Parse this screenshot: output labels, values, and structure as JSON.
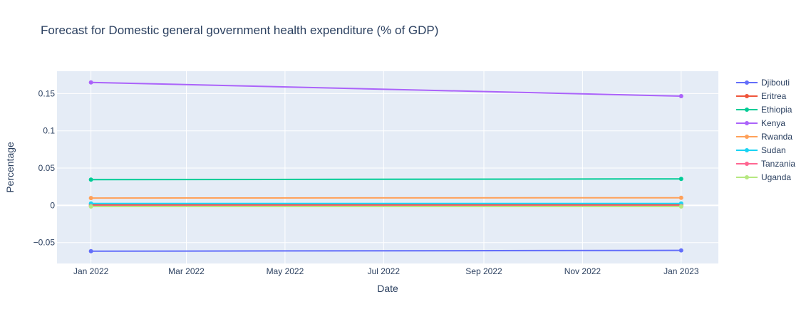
{
  "chart_data": {
    "type": "line",
    "title": "Forecast for Domestic general government health expenditure (% of GDP)",
    "xlabel": "Date",
    "ylabel": "Percentage",
    "x": [
      "Jan 2022",
      "Jan 2023"
    ],
    "x_dates": [
      "2022-01-01",
      "2023-01-01"
    ],
    "x_ticks": [
      "Jan 2022",
      "Mar 2022",
      "May 2022",
      "Jul 2022",
      "Sep 2022",
      "Nov 2022",
      "Jan 2023"
    ],
    "x_tick_dates": [
      "2022-01-01",
      "2022-03-01",
      "2022-05-01",
      "2022-07-01",
      "2022-09-01",
      "2022-11-01",
      "2023-01-01"
    ],
    "x_range": [
      "2021-12-11",
      "2023-01-24"
    ],
    "y_ticks": [
      -0.05,
      0,
      0.05,
      0.1,
      0.15
    ],
    "y_tick_labels": [
      "−0.05",
      "0",
      "0.05",
      "0.1",
      "0.15"
    ],
    "ylim": [
      -0.078,
      0.18
    ],
    "grid": true,
    "legend_position": "right",
    "plot_bg": "#e5ecf6",
    "series": [
      {
        "name": "Djibouti",
        "color": "#636efa",
        "values": [
          -0.0615,
          -0.0605
        ]
      },
      {
        "name": "Eritrea",
        "color": "#ef553b",
        "values": [
          0.0005,
          0.0005
        ]
      },
      {
        "name": "Ethiopia",
        "color": "#00cc96",
        "values": [
          0.0345,
          0.0355
        ]
      },
      {
        "name": "Kenya",
        "color": "#ab63fa",
        "values": [
          0.165,
          0.1465
        ]
      },
      {
        "name": "Rwanda",
        "color": "#ffa15a",
        "values": [
          0.0098,
          0.0102
        ]
      },
      {
        "name": "Sudan",
        "color": "#19d3f3",
        "values": [
          0.0025,
          0.0025
        ]
      },
      {
        "name": "Tanzania",
        "color": "#ff6692",
        "values": [
          -0.001,
          -0.001
        ]
      },
      {
        "name": "Uganda",
        "color": "#b6e880",
        "values": [
          -0.0015,
          -0.0015
        ]
      }
    ]
  }
}
